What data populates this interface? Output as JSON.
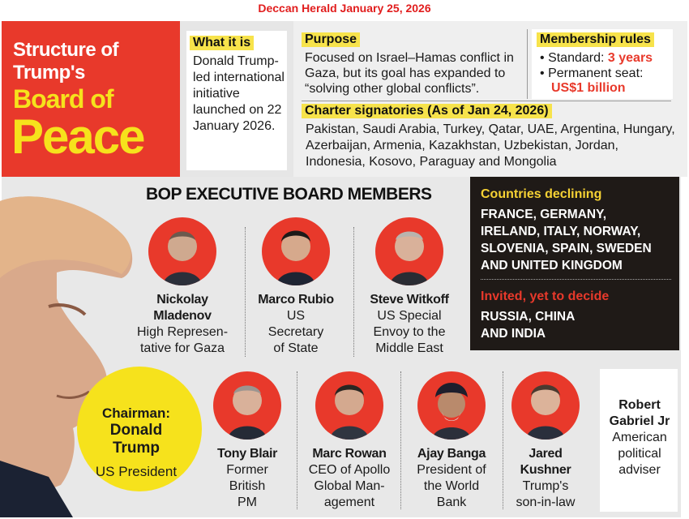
{
  "source": "Deccan Herald January 25, 2026",
  "title": {
    "line1": "Structure of",
    "line2": "Trump's",
    "line3": "Board of",
    "line4": "Peace"
  },
  "what_it_is": {
    "heading": "What it is",
    "text": "Donald Trump-led international initiative launched on 22 January 2026."
  },
  "purpose": {
    "heading": "Purpose",
    "text": "Focused on Israel–Hamas conflict in Gaza, but its goal has expanded to “solving other global conflicts”."
  },
  "membership": {
    "heading": "Membership rules",
    "standard_label": "Standard:",
    "standard_value": "3 years",
    "permanent_label": "Permanent seat:",
    "permanent_value": "US$1 billion"
  },
  "charter": {
    "heading": "Charter signatories (As of Jan 24, 2026)",
    "text": "Pakistan, Saudi Arabia, Turkey, Qatar, UAE, Argentina, Hungary, Azerbaijan, Armenia, Kazakhstan, Uzbekistan, Jordan, Indonesia, Kosovo, Paraguay and Mongolia"
  },
  "board": {
    "heading": "BOP EXECUTIVE BOARD MEMBERS",
    "chairman_label": "Chairman:",
    "chairman_name_1": "Donald",
    "chairman_name_2": "Trump",
    "chairman_role": "US President",
    "row1": [
      {
        "name_1": "Nickolay",
        "name_2": "Mladenov",
        "role": [
          "High Represen-",
          "tative for Gaza"
        ]
      },
      {
        "name_1": "Marco Rubio",
        "name_2": "",
        "role": [
          "US",
          "Secretary",
          "of State"
        ]
      },
      {
        "name_1": "Steve Witkoff",
        "name_2": "",
        "role": [
          "US Special",
          "Envoy to the",
          "Middle East"
        ]
      }
    ],
    "row2": [
      {
        "name_1": "Tony Blair",
        "name_2": "",
        "role": [
          "Former",
          "British",
          "PM"
        ]
      },
      {
        "name_1": "Marc Rowan",
        "name_2": "",
        "role": [
          "CEO of Apollo",
          "Global Man-",
          "agement"
        ]
      },
      {
        "name_1": "Ajay Banga",
        "name_2": "",
        "role": [
          "President of",
          "the World",
          "Bank"
        ]
      },
      {
        "name_1": "Jared",
        "name_2": "Kushner",
        "role": [
          "Trump's",
          "son-in-law"
        ]
      }
    ],
    "extra": {
      "name_1": "Robert",
      "name_2": "Gabriel Jr",
      "role": [
        "American",
        "political",
        "adviser"
      ]
    }
  },
  "countries": {
    "declining_heading": "Countries declining",
    "declining_lines": [
      "FRANCE, GERMANY,",
      "IRELAND, ITALY, NORWAY,",
      "SLOVENIA, SPAIN, SWEDEN",
      "AND UNITED KINGDOM"
    ],
    "invited_heading": "Invited, yet to decide",
    "invited_lines": [
      "RUSSIA, CHINA",
      "AND INDIA"
    ]
  },
  "colors": {
    "red": "#e8392b",
    "yellow": "#f6e21c",
    "dark": "#1f1a17"
  }
}
